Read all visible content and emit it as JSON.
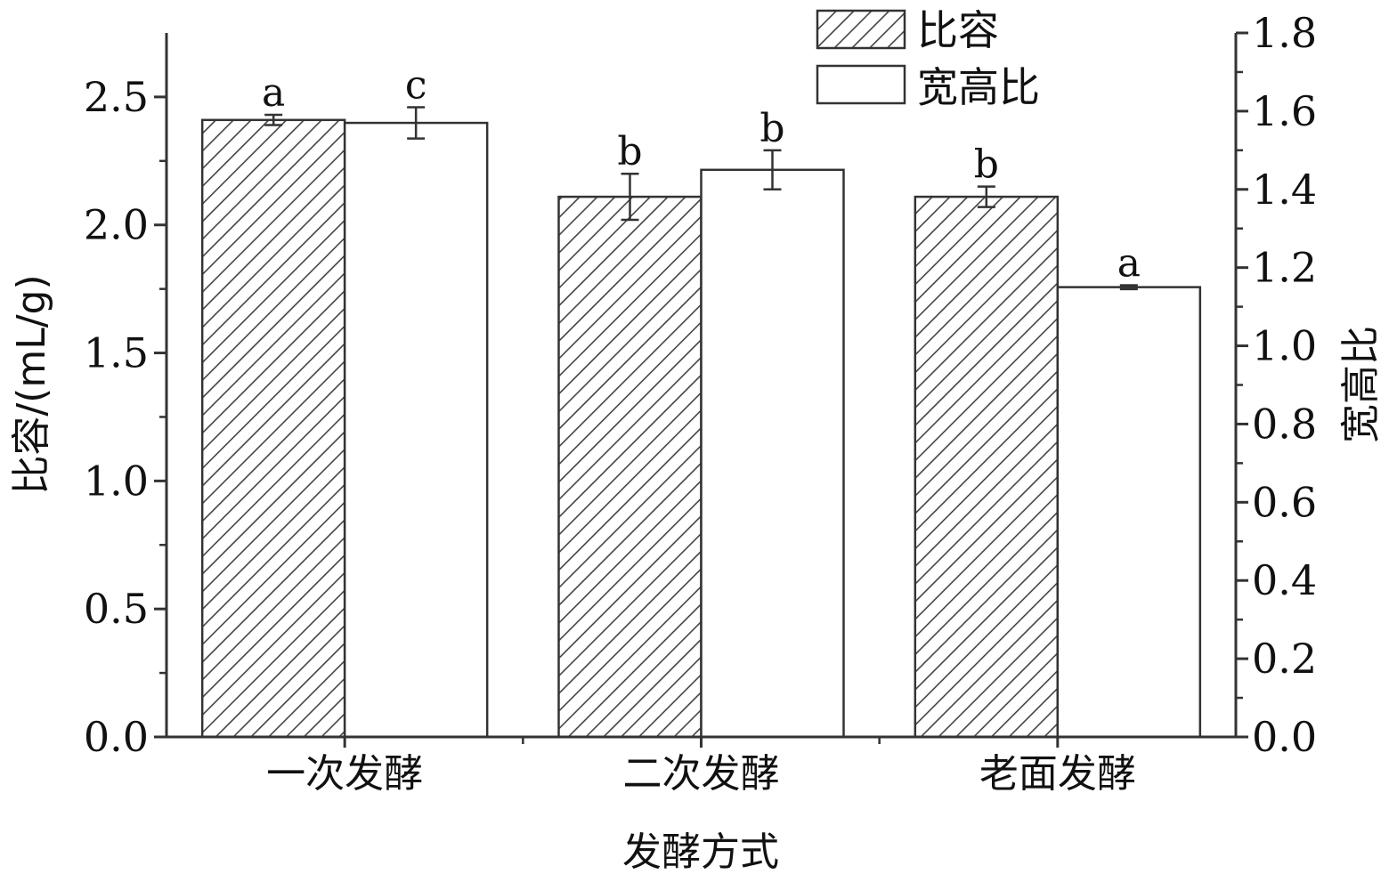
{
  "chart_data": {
    "type": "bar",
    "categories": [
      "一次发酵",
      "二次发酵",
      "老面发酵"
    ],
    "xlabel": "发酵方式",
    "ylabel": "比容/(mL/g)",
    "y2label": "宽高比",
    "ylim": [
      0,
      2.75
    ],
    "y2lim": [
      0,
      1.8
    ],
    "yticks": [
      "0.0",
      "0.5",
      "1.0",
      "1.5",
      "2.0",
      "2.5"
    ],
    "y2ticks": [
      "0.0",
      "0.2",
      "0.4",
      "0.6",
      "0.8",
      "1.0",
      "1.2",
      "1.4",
      "1.6",
      "1.8"
    ],
    "legend_position": "top-right",
    "series": [
      {
        "name": "比容",
        "axis": "left",
        "pattern": "diagonal-hatch",
        "values": [
          2.41,
          2.11,
          2.11
        ],
        "errors": [
          0.02,
          0.09,
          0.04
        ],
        "letters": [
          "a",
          "b",
          "b"
        ]
      },
      {
        "name": "宽高比",
        "axis": "right",
        "pattern": "white",
        "values": [
          1.57,
          1.45,
          1.15
        ],
        "errors": [
          0.04,
          0.05,
          0.005
        ],
        "letters": [
          "c",
          "b",
          "a"
        ]
      }
    ],
    "colors": {
      "axis": "#333333",
      "hatch": "#444444",
      "bar_edge": "#333333",
      "fill": "#ffffff"
    }
  }
}
